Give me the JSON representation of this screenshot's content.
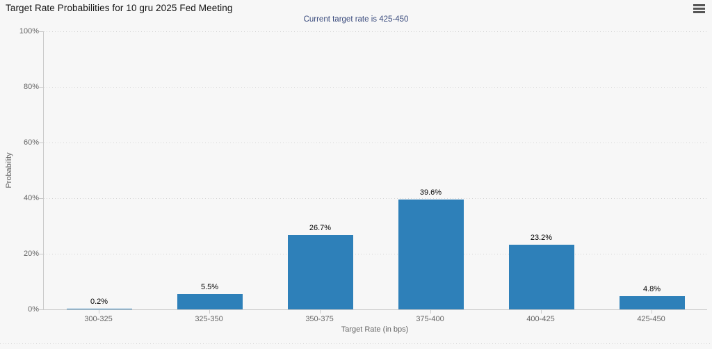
{
  "header": {
    "title": "Target Rate Probabilities for 10 gru 2025 Fed Meeting",
    "subtitle": "Current target rate is 425-450",
    "menu_icon": "hamburger-menu-icon",
    "watermark_icon": "q-logo-watermark"
  },
  "chart_data": {
    "type": "bar",
    "title": "Target Rate Probabilities for 10 gru 2025 Fed Meeting",
    "subtitle": "Current target rate is 425-450",
    "categories": [
      "300-325",
      "325-350",
      "350-375",
      "375-400",
      "400-425",
      "425-450"
    ],
    "values": [
      0.2,
      5.5,
      26.7,
      39.6,
      23.2,
      4.8
    ],
    "value_labels": [
      "0.2%",
      "5.5%",
      "26.7%",
      "39.6%",
      "23.2%",
      "4.8%"
    ],
    "xlabel": "Target Rate (in bps)",
    "ylabel": "Probability",
    "ylim": [
      0,
      100
    ],
    "yticks": [
      0,
      20,
      40,
      60,
      80,
      100
    ],
    "ytick_labels": [
      "0%",
      "20%",
      "40%",
      "60%",
      "80%",
      "100%"
    ],
    "grid": true,
    "legend": "none",
    "bar_color": "#2e80b9"
  },
  "colors": {
    "background": "#f7f7f7",
    "bar": "#2e80b9",
    "subtitle_text": "#3a4b7d",
    "axis_text": "#666666",
    "axis_line": "#c9c9c9"
  }
}
